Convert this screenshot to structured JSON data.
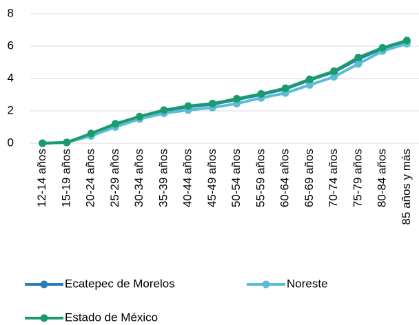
{
  "chart_data": {
    "type": "line",
    "categories": [
      "12-14 años",
      "15-19 años",
      "20-24 años",
      "25-29 años",
      "30-34 años",
      "35-39 años",
      "40-44 años",
      "45-49 años",
      "50-54 años",
      "55-59 años",
      "60-64 años",
      "65-69 años",
      "70-74 años",
      "75-79 años",
      "80-84 años",
      "85 años y más"
    ],
    "series": [
      {
        "name": "Ecatepec de Morelos",
        "color": "#2a7db5",
        "values": [
          0,
          0.05,
          0.55,
          1.1,
          1.6,
          2.0,
          2.25,
          2.4,
          2.7,
          3.0,
          3.35,
          3.9,
          4.4,
          5.2,
          5.85,
          6.3
        ]
      },
      {
        "name": "Noreste",
        "color": "#5bbcd6",
        "values": [
          0,
          0.05,
          0.45,
          1.0,
          1.5,
          1.85,
          2.05,
          2.2,
          2.45,
          2.8,
          3.1,
          3.6,
          4.1,
          4.9,
          5.7,
          6.15
        ]
      },
      {
        "name": "Estado de México",
        "color": "#1a9b6c",
        "values": [
          0,
          0.05,
          0.6,
          1.2,
          1.65,
          2.05,
          2.3,
          2.45,
          2.75,
          3.05,
          3.4,
          3.95,
          4.45,
          5.3,
          5.9,
          6.35
        ]
      }
    ],
    "ylim": [
      0,
      8
    ],
    "yticks": [
      0,
      2,
      4,
      6,
      8
    ],
    "grid": true
  }
}
